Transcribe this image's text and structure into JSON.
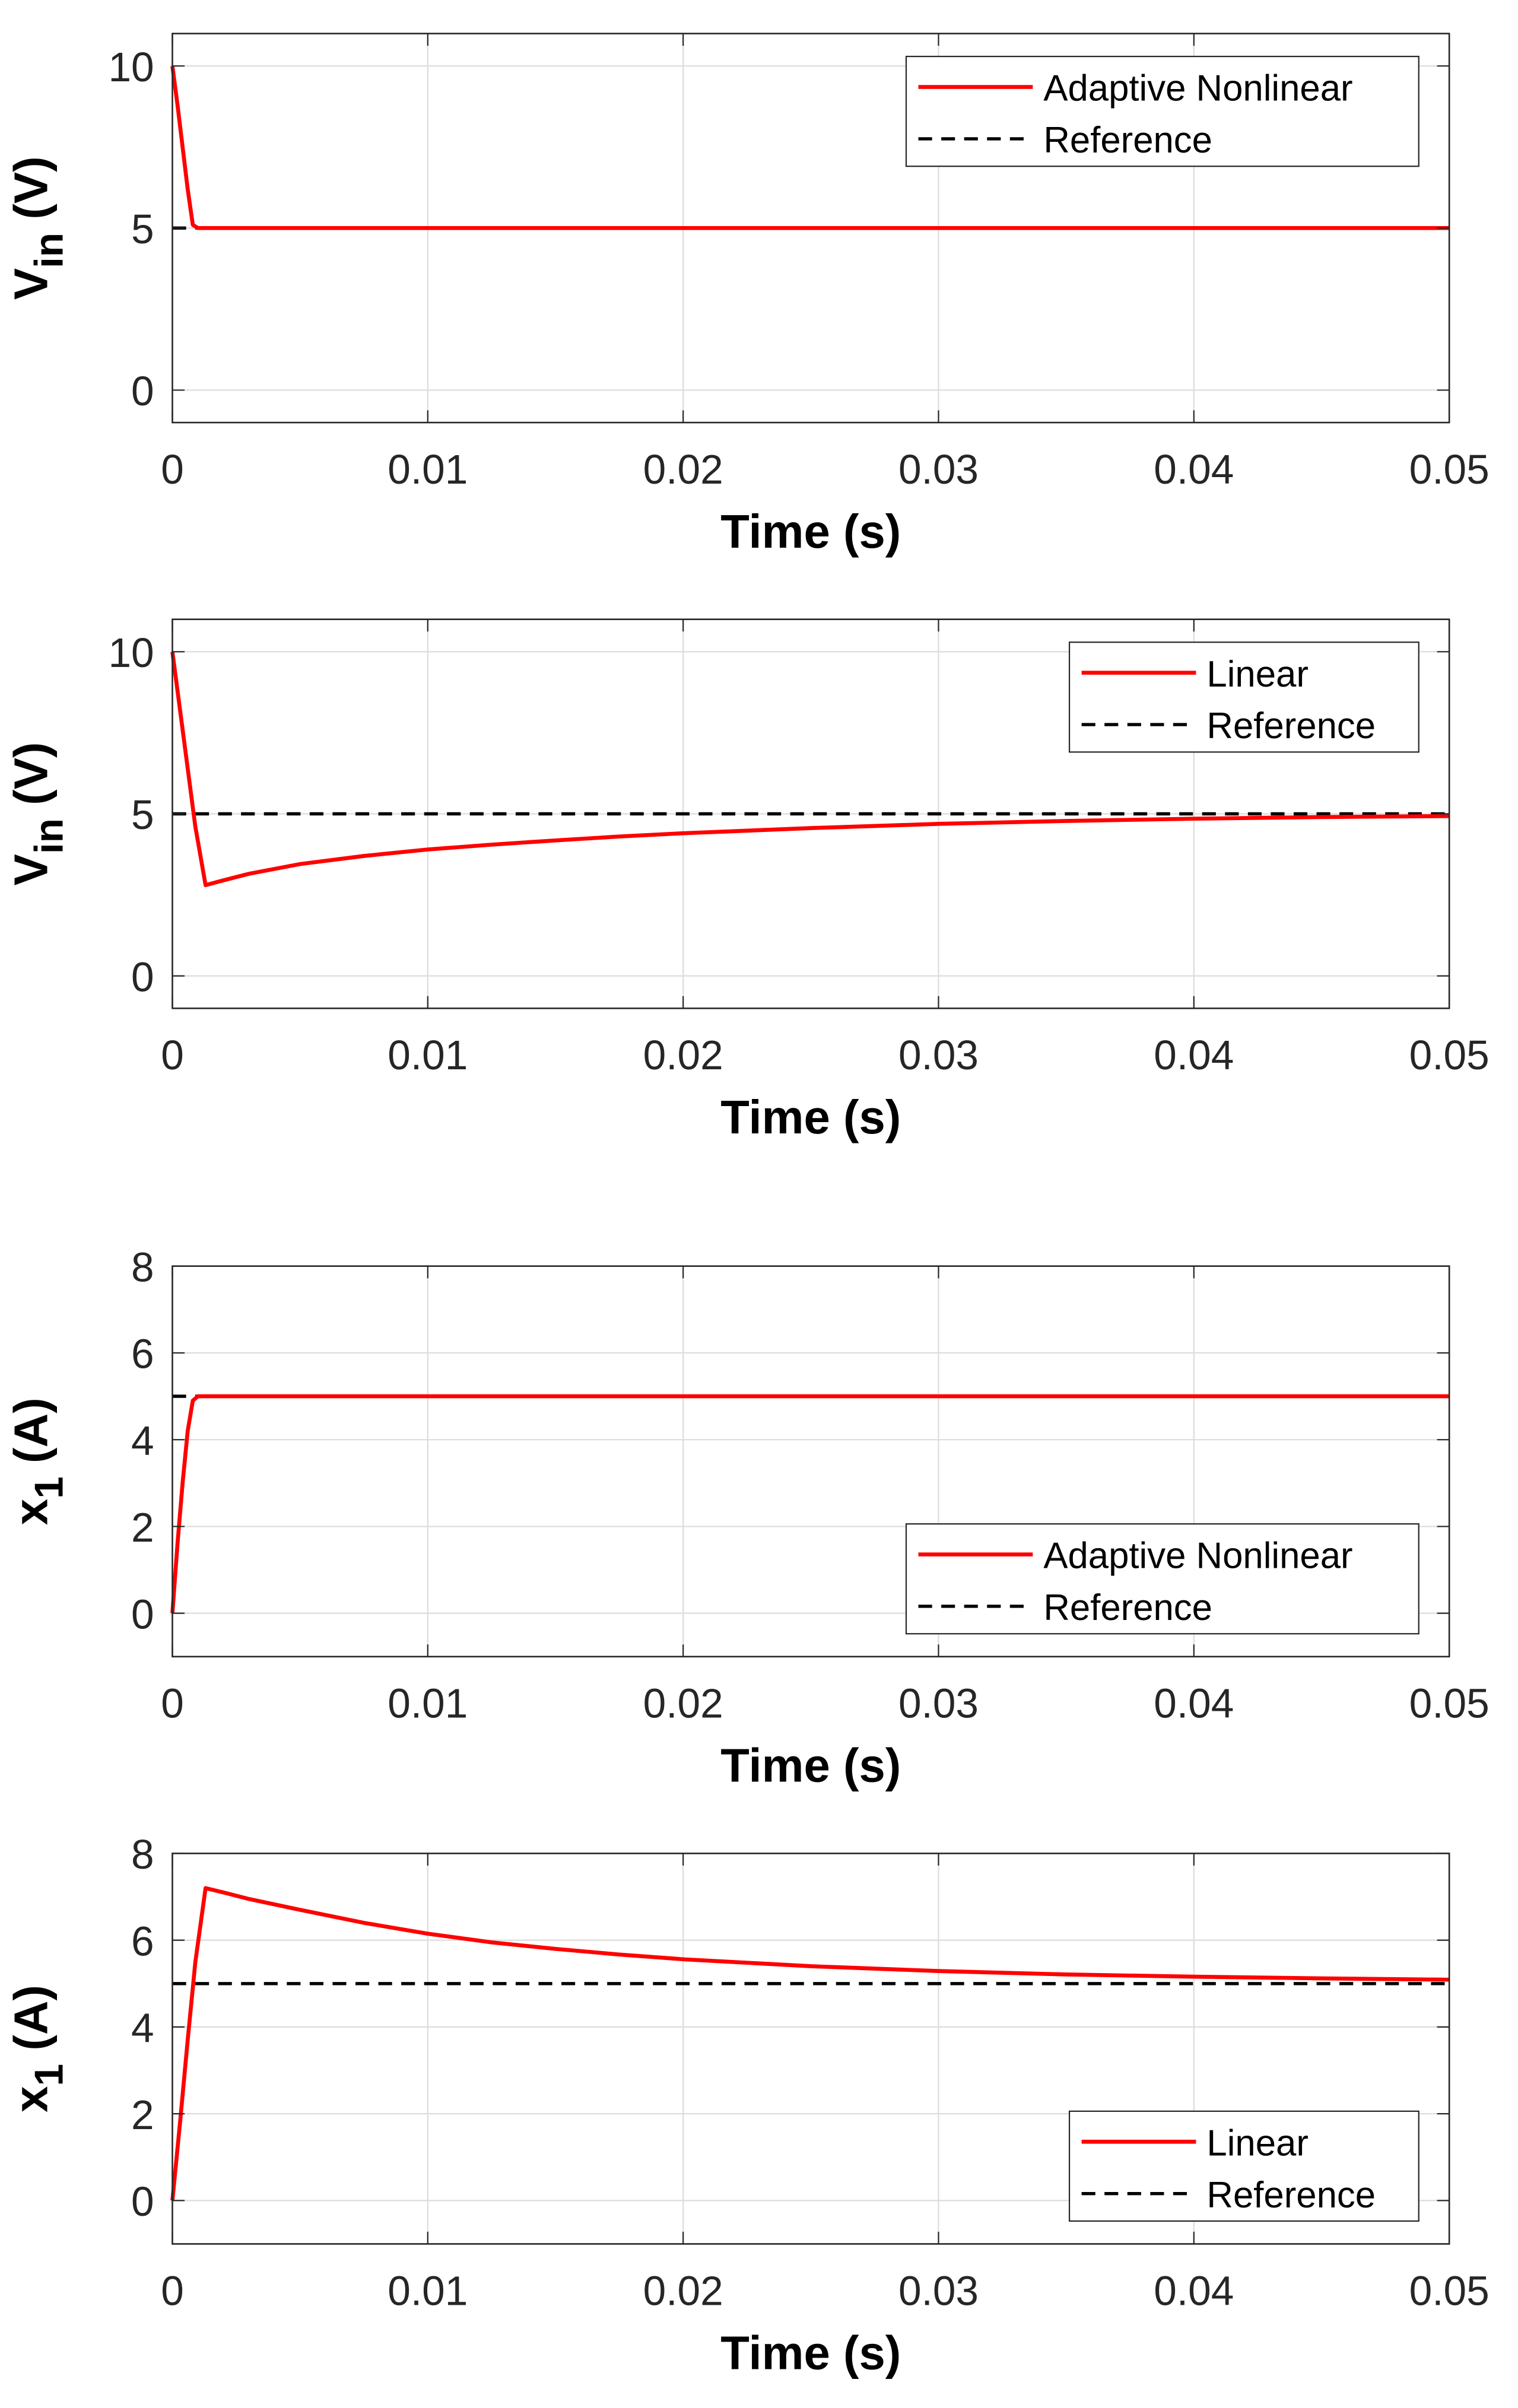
{
  "figure": {
    "description_free": true
  },
  "chart_data": [
    {
      "type": "line",
      "xlabel": "Time (s)",
      "ylabel_main": "V",
      "ylabel_sub": "in",
      "ylabel_unit": " (V)",
      "xlim": [
        0,
        0.05
      ],
      "ylim": [
        -1,
        11
      ],
      "xticks": [
        0,
        0.01,
        0.02,
        0.03,
        0.04,
        0.05
      ],
      "xtick_labels": [
        "0",
        "0.01",
        "0.02",
        "0.03",
        "0.04",
        "0.05"
      ],
      "yticks": [
        0,
        5,
        10
      ],
      "ytick_labels": [
        "0",
        "5",
        "10"
      ],
      "grid": true,
      "legend_position": "top-right",
      "series": [
        {
          "name": "Adaptive Nonlinear",
          "color": "#ff0000",
          "style": "solid",
          "x": [
            0,
            0.0002,
            0.0004,
            0.0006,
            0.0008,
            0.001,
            0.002,
            0.01,
            0.02,
            0.03,
            0.04,
            0.05
          ],
          "y": [
            10,
            8.8,
            7.5,
            6.2,
            5.1,
            5,
            5,
            5,
            5,
            5,
            5,
            5
          ]
        },
        {
          "name": "Reference",
          "color": "#000000",
          "style": "dashed",
          "x": [
            0,
            0.05
          ],
          "y": [
            5,
            5
          ]
        }
      ]
    },
    {
      "type": "line",
      "xlabel": "Time (s)",
      "ylabel_main": "V",
      "ylabel_sub": "in",
      "ylabel_unit": " (V)",
      "xlim": [
        0,
        0.05
      ],
      "ylim": [
        -1,
        11
      ],
      "xticks": [
        0,
        0.01,
        0.02,
        0.03,
        0.04,
        0.05
      ],
      "xtick_labels": [
        "0",
        "0.01",
        "0.02",
        "0.03",
        "0.04",
        "0.05"
      ],
      "yticks": [
        0,
        5,
        10
      ],
      "ytick_labels": [
        "0",
        "5",
        "10"
      ],
      "grid": true,
      "legend_position": "top-right",
      "series": [
        {
          "name": "Linear",
          "color": "#ff0000",
          "style": "solid",
          "x": [
            0,
            0.0003,
            0.0006,
            0.0009,
            0.0013,
            0.002,
            0.003,
            0.005,
            0.0075,
            0.01,
            0.0125,
            0.015,
            0.0175,
            0.02,
            0.025,
            0.03,
            0.035,
            0.04,
            0.045,
            0.05
          ],
          "y": [
            10,
            8.2,
            6.4,
            4.6,
            2.8,
            2.95,
            3.15,
            3.45,
            3.7,
            3.9,
            4.05,
            4.18,
            4.3,
            4.4,
            4.56,
            4.69,
            4.78,
            4.85,
            4.9,
            4.93
          ]
        },
        {
          "name": "Reference",
          "color": "#000000",
          "style": "dashed",
          "x": [
            0,
            0.05
          ],
          "y": [
            5,
            5
          ]
        }
      ]
    },
    {
      "type": "line",
      "xlabel": "Time (s)",
      "ylabel_main": "x",
      "ylabel_sub": "1",
      "ylabel_unit": " (A)",
      "xlim": [
        0,
        0.05
      ],
      "ylim": [
        -1,
        8
      ],
      "xticks": [
        0,
        0.01,
        0.02,
        0.03,
        0.04,
        0.05
      ],
      "xtick_labels": [
        "0",
        "0.01",
        "0.02",
        "0.03",
        "0.04",
        "0.05"
      ],
      "yticks": [
        0,
        2,
        4,
        6,
        8
      ],
      "ytick_labels": [
        "0",
        "2",
        "4",
        "6",
        "8"
      ],
      "grid": true,
      "legend_position": "bottom-right",
      "series": [
        {
          "name": "Adaptive Nonlinear",
          "color": "#ff0000",
          "style": "solid",
          "x": [
            0,
            0.0002,
            0.0004,
            0.0006,
            0.0008,
            0.001,
            0.002,
            0.01,
            0.02,
            0.03,
            0.04,
            0.05
          ],
          "y": [
            0,
            1.6,
            3.0,
            4.2,
            4.9,
            5,
            5,
            5,
            5,
            5,
            5,
            5
          ]
        },
        {
          "name": "Reference",
          "color": "#000000",
          "style": "dashed",
          "x": [
            0,
            0.05
          ],
          "y": [
            5,
            5
          ]
        }
      ]
    },
    {
      "type": "line",
      "xlabel": "Time (s)",
      "ylabel_main": "x",
      "ylabel_sub": "1",
      "ylabel_unit": " (A)",
      "xlim": [
        0,
        0.05
      ],
      "ylim": [
        -1,
        8
      ],
      "xticks": [
        0,
        0.01,
        0.02,
        0.03,
        0.04,
        0.05
      ],
      "xtick_labels": [
        "0",
        "0.01",
        "0.02",
        "0.03",
        "0.04",
        "0.05"
      ],
      "yticks": [
        0,
        2,
        4,
        6,
        8
      ],
      "ytick_labels": [
        "0",
        "2",
        "4",
        "6",
        "8"
      ],
      "grid": true,
      "legend_position": "bottom-right",
      "series": [
        {
          "name": "Linear",
          "color": "#ff0000",
          "style": "solid",
          "x": [
            0,
            0.0003,
            0.0006,
            0.0009,
            0.0013,
            0.002,
            0.003,
            0.005,
            0.0075,
            0.01,
            0.0125,
            0.015,
            0.0175,
            0.02,
            0.025,
            0.03,
            0.035,
            0.04,
            0.045,
            0.05
          ],
          "y": [
            0,
            1.8,
            3.7,
            5.5,
            7.2,
            7.1,
            6.95,
            6.7,
            6.4,
            6.15,
            5.95,
            5.8,
            5.67,
            5.56,
            5.4,
            5.29,
            5.21,
            5.16,
            5.12,
            5.09
          ]
        },
        {
          "name": "Reference",
          "color": "#000000",
          "style": "dashed",
          "x": [
            0,
            0.05
          ],
          "y": [
            5,
            5
          ]
        }
      ]
    }
  ]
}
